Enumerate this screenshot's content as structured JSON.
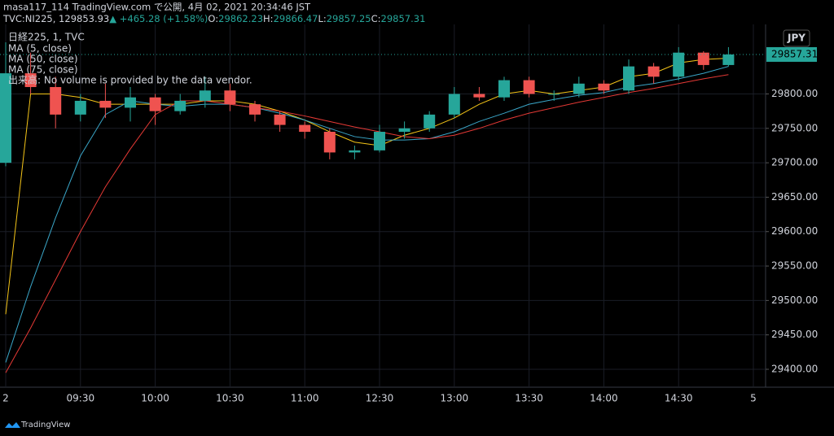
{
  "header": {
    "published": "masa117_114 TradingView.com で公開, 4月 02, 2021 20:34:46 JST",
    "symbol": "TVC:NI225, 1",
    "price": 29853.93,
    "change": "▲ +465.28 (+1.58%)",
    "ohlc": [
      {
        "label": "O:",
        "value": 29862.23
      },
      {
        "label": "H:",
        "value": 29866.47
      },
      {
        "label": "L:",
        "value": 29857.25
      },
      {
        "label": "C:",
        "value": 29857.31
      }
    ]
  },
  "chart_data": {
    "type": "candlestick",
    "title": "日経225, 1, TVC",
    "annotation": "出来高: No volume is provided by the data vendor.",
    "currency": "JPY",
    "last_price": 29857.31,
    "up_color": "#26a69a",
    "down_color": "#ef5350",
    "categories": [
      "2",
      null,
      null,
      "09:30",
      null,
      null,
      "10:00",
      null,
      null,
      "10:30",
      null,
      null,
      "11:00",
      null,
      null,
      "12:30",
      null,
      null,
      "13:00",
      null,
      null,
      "13:30",
      null,
      null,
      "14:00",
      null,
      null,
      "14:30",
      null,
      null,
      "5"
    ],
    "open": [
      29700,
      29830,
      29810,
      29770,
      29790,
      29780,
      29795,
      29775,
      29790,
      29805,
      29785,
      29770,
      29755,
      29745,
      29715,
      29718,
      29745,
      29750,
      29770,
      29800,
      29795,
      29820,
      29800,
      29800,
      29815,
      29805,
      29840,
      29825,
      29860,
      29842,
      null
    ],
    "high": [
      29875,
      29860,
      29825,
      29800,
      29815,
      29810,
      29800,
      29800,
      29825,
      29815,
      29790,
      29775,
      29760,
      29750,
      29725,
      29755,
      29760,
      29775,
      29810,
      29810,
      29825,
      29825,
      29805,
      29825,
      29820,
      29850,
      29845,
      29868,
      29862,
      29868,
      null
    ],
    "low": [
      29695,
      29800,
      29750,
      29760,
      29765,
      29760,
      29755,
      29770,
      29780,
      29775,
      29760,
      29745,
      29735,
      29705,
      29705,
      29715,
      29735,
      29745,
      29765,
      29790,
      29790,
      29795,
      29790,
      29795,
      29800,
      29800,
      29815,
      29820,
      29835,
      29840,
      null
    ],
    "close": [
      29830,
      29810,
      29770,
      29790,
      29780,
      29795,
      29775,
      29790,
      29805,
      29785,
      29770,
      29755,
      29745,
      29715,
      29718,
      29745,
      29750,
      29770,
      29800,
      29795,
      29820,
      29800,
      29800,
      29815,
      29805,
      29840,
      29825,
      29860,
      29842,
      29857.31,
      null
    ],
    "series": [
      {
        "name": "MA (5, close)",
        "color": "#f5c518",
        "values": [
          29480,
          29800,
          29800,
          29795,
          29785,
          29785,
          29785,
          29785,
          29790,
          29790,
          29785,
          29775,
          29762,
          29745,
          29730,
          29725,
          29740,
          29750,
          29765,
          29785,
          29800,
          29805,
          29800,
          29805,
          29810,
          29825,
          29830,
          29845,
          29850,
          29852,
          null
        ]
      },
      {
        "name": "MA (50, close)",
        "color": "#3aa6c8",
        "values": [
          29410,
          29520,
          29620,
          29710,
          29770,
          29790,
          29785,
          29782,
          29785,
          29785,
          29780,
          29772,
          29762,
          29750,
          29738,
          29733,
          29733,
          29735,
          29745,
          29760,
          29772,
          29785,
          29792,
          29798,
          29802,
          29810,
          29815,
          29822,
          29830,
          29840,
          null
        ]
      },
      {
        "name": "MA (75, close)",
        "color": "#e53935",
        "values": [
          29395,
          29460,
          29530,
          29600,
          29665,
          29720,
          29770,
          29790,
          29790,
          29785,
          29780,
          29775,
          29768,
          29760,
          29752,
          29745,
          29738,
          29735,
          29740,
          29750,
          29762,
          29772,
          29780,
          29788,
          29795,
          29802,
          29808,
          29815,
          29822,
          29828,
          null
        ]
      }
    ],
    "ylim": [
      29374,
      29901
    ],
    "yticks": [
      {
        "value": 29400,
        "label": "29400.00"
      },
      {
        "value": 29450,
        "label": "29450.00"
      },
      {
        "value": 29500,
        "label": "29500.00"
      },
      {
        "value": 29550,
        "label": "29550.00"
      },
      {
        "value": 29600,
        "label": "29600.00"
      },
      {
        "value": 29650,
        "label": "29650.00"
      },
      {
        "value": 29700,
        "label": "29700.00"
      },
      {
        "value": 29750,
        "label": "29750.00"
      },
      {
        "value": 29800,
        "label": "29800.00"
      }
    ],
    "grid": true
  },
  "footer": {
    "brand": "TradingView"
  }
}
